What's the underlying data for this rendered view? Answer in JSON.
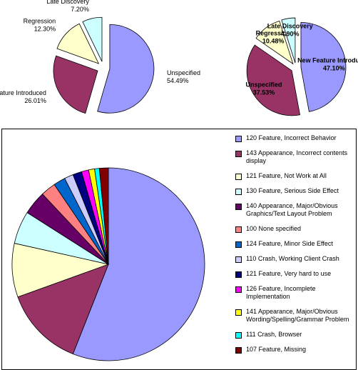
{
  "chart_data": [
    {
      "type": "pie",
      "categories": [
        "Unspecified",
        "New Feature Introduced",
        "Regression",
        "Late Discovery"
      ],
      "values": [
        54.49,
        26.01,
        12.3,
        7.2
      ],
      "value_labels": [
        "54.49%",
        "26.01%",
        "12.30%",
        "7.20%"
      ],
      "colors": [
        "#9999ff",
        "#993366",
        "#ffffcc",
        "#ccffff"
      ]
    },
    {
      "type": "pie",
      "categories": [
        "New Feature Introduced",
        "Unspecified",
        "Regression",
        "Late Discovery"
      ],
      "values": [
        47.1,
        37.53,
        10.48,
        4.9
      ],
      "value_labels": [
        "47.10%",
        "37.53%",
        "10.48%",
        "4.90%"
      ],
      "colors": [
        "#9999ff",
        "#993366",
        "#ffffcc",
        "#ccffff"
      ]
    },
    {
      "type": "pie",
      "categories": [
        "120 Feature, Incorrect Behavior",
        "143 Appearance, Incorrect contents display",
        "121 Feature, Not Work at All",
        "130 Feature, Serious Side Effect",
        "140 Appearance, Major/Obvious Graphics/Text Layout Problem",
        "100 None specified",
        "124 Feature, Minor Side Effect",
        "110 Crash, Working Client Crash",
        "121 Feature, Very hard to use",
        "126 Feature, Incomplete Implementation",
        "141 Appearance, Major/Obvious Wording/Spelling/Grammar Problem",
        "111 Crash, Browser",
        "107 Feature, Missing"
      ],
      "values": [
        56,
        13.5,
        9,
        5.5,
        4,
        2.5,
        2,
        1.5,
        1.5,
        1.2,
        1,
        0.8,
        1.5
      ],
      "colors": [
        "#9999ff",
        "#993366",
        "#ffffcc",
        "#ccffff",
        "#660066",
        "#ff8080",
        "#0066cc",
        "#ccccff",
        "#000080",
        "#ff00ff",
        "#ffff00",
        "#00ffff",
        "#800000"
      ],
      "legend": "right"
    }
  ]
}
